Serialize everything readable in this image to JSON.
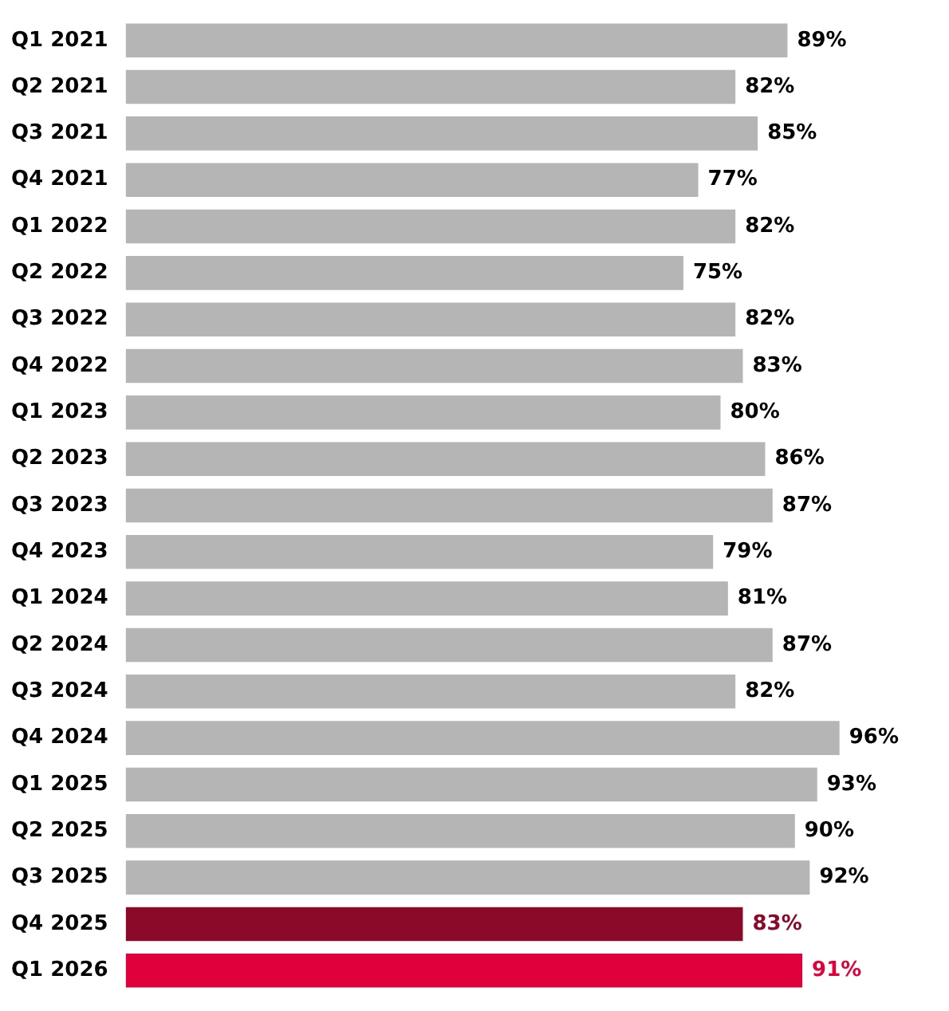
{
  "chart_data": {
    "type": "bar",
    "orientation": "horizontal",
    "categories": [
      "Q1 2021",
      "Q2 2021",
      "Q3 2021",
      "Q4 2021",
      "Q1 2022",
      "Q2 2022",
      "Q3 2022",
      "Q4 2022",
      "Q1 2023",
      "Q2 2023",
      "Q3 2023",
      "Q4 2023",
      "Q1 2024",
      "Q2 2024",
      "Q3 2024",
      "Q4 2024",
      "Q1 2025",
      "Q2 2025",
      "Q3 2025",
      "Q4 2025",
      "Q1 2026"
    ],
    "values": [
      89,
      82,
      85,
      77,
      82,
      75,
      82,
      83,
      80,
      86,
      87,
      79,
      81,
      87,
      82,
      96,
      93,
      90,
      92,
      83,
      91
    ],
    "value_labels": [
      "89%",
      "82%",
      "85%",
      "77%",
      "82%",
      "75%",
      "82%",
      "83%",
      "80%",
      "86%",
      "87%",
      "79%",
      "81%",
      "87%",
      "82%",
      "96%",
      "93%",
      "90%",
      "92%",
      "83%",
      "91%"
    ],
    "colors": [
      "#b5b5b5",
      "#b5b5b5",
      "#b5b5b5",
      "#b5b5b5",
      "#b5b5b5",
      "#b5b5b5",
      "#b5b5b5",
      "#b5b5b5",
      "#b5b5b5",
      "#b5b5b5",
      "#b5b5b5",
      "#b5b5b5",
      "#b5b5b5",
      "#b5b5b5",
      "#b5b5b5",
      "#b5b5b5",
      "#b5b5b5",
      "#b5b5b5",
      "#b5b5b5",
      "#8b0a2a",
      "#e0003c"
    ],
    "tick_labels": "y",
    "legend": false
  }
}
